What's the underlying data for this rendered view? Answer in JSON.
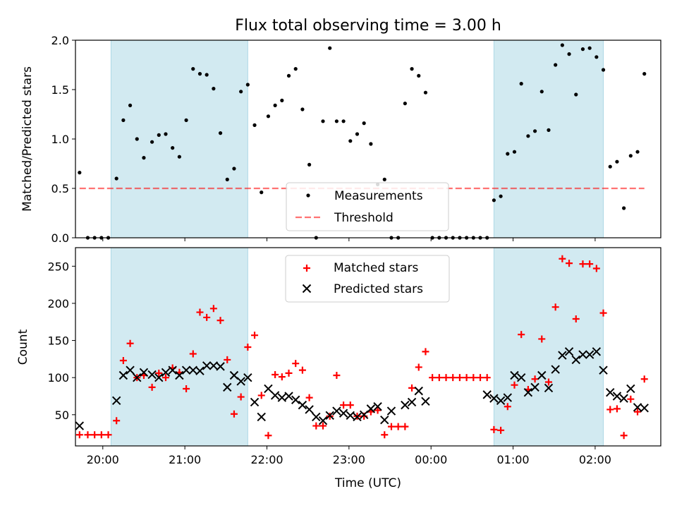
{
  "title": "Flux total observing time = 3.00 h",
  "xlabel": "Time (UTC)",
  "colors": {
    "shade": "#add8e6",
    "measurements": "#000000",
    "threshold": "#ff0000",
    "matched": "#ff0000",
    "predicted": "#000000"
  },
  "chart_data": [
    {
      "type": "scatter",
      "ylabel": "Matched/Predicted stars",
      "ylim": [
        0,
        2.0
      ],
      "yticks": [
        "0.0",
        "0.5",
        "1.0",
        "1.5",
        "2.0"
      ],
      "x_range": [
        "19:40",
        "02:48"
      ],
      "shaded_intervals": [
        [
          "20:06",
          "21:46"
        ],
        [
          "00:46",
          "02:06"
        ]
      ],
      "threshold": 0.5,
      "legend": {
        "placement": "lower-center",
        "entries": [
          "Measurements",
          "Threshold"
        ]
      },
      "series": [
        {
          "name": "Measurements",
          "marker": "dot",
          "points": [
            [
              "19:43",
              0.66
            ],
            [
              "19:49",
              0
            ],
            [
              "19:54",
              0
            ],
            [
              "19:59",
              0
            ],
            [
              "20:04",
              0
            ],
            [
              "20:10",
              0.6
            ],
            [
              "20:15",
              1.19
            ],
            [
              "20:20",
              1.34
            ],
            [
              "20:25",
              1.0
            ],
            [
              "20:30",
              0.81
            ],
            [
              "20:36",
              0.97
            ],
            [
              "20:41",
              1.04
            ],
            [
              "20:46",
              1.05
            ],
            [
              "20:51",
              0.91
            ],
            [
              "20:56",
              0.82
            ],
            [
              "21:01",
              1.19
            ],
            [
              "21:06",
              1.71
            ],
            [
              "21:11",
              1.66
            ],
            [
              "21:16",
              1.65
            ],
            [
              "21:21",
              1.51
            ],
            [
              "21:26",
              1.06
            ],
            [
              "21:31",
              0.59
            ],
            [
              "21:36",
              0.7
            ],
            [
              "21:41",
              1.48
            ],
            [
              "21:46",
              1.55
            ],
            [
              "21:51",
              1.14
            ],
            [
              "21:56",
              0.46
            ],
            [
              "22:01",
              1.23
            ],
            [
              "22:06",
              1.34
            ],
            [
              "22:11",
              1.39
            ],
            [
              "22:16",
              1.64
            ],
            [
              "22:21",
              1.71
            ],
            [
              "22:26",
              1.3
            ],
            [
              "22:31",
              0.74
            ],
            [
              "22:36",
              0
            ],
            [
              "22:41",
              1.18
            ],
            [
              "22:46",
              1.92
            ],
            [
              "22:51",
              1.18
            ],
            [
              "22:56",
              1.18
            ],
            [
              "23:01",
              0.98
            ],
            [
              "23:06",
              1.05
            ],
            [
              "23:11",
              1.16
            ],
            [
              "23:16",
              0.95
            ],
            [
              "23:21",
              0.54
            ],
            [
              "23:26",
              0.59
            ],
            [
              "23:31",
              0
            ],
            [
              "23:36",
              0
            ],
            [
              "23:41",
              1.36
            ],
            [
              "23:46",
              1.71
            ],
            [
              "23:51",
              1.64
            ],
            [
              "23:56",
              1.47
            ],
            [
              "00:01",
              0
            ],
            [
              "00:06",
              0
            ],
            [
              "00:11",
              0
            ],
            [
              "00:16",
              0
            ],
            [
              "00:21",
              0
            ],
            [
              "00:26",
              0
            ],
            [
              "00:31",
              0
            ],
            [
              "00:36",
              0
            ],
            [
              "00:41",
              0
            ],
            [
              "00:46",
              0.38
            ],
            [
              "00:51",
              0.42
            ],
            [
              "00:56",
              0.85
            ],
            [
              "01:01",
              0.87
            ],
            [
              "01:06",
              1.56
            ],
            [
              "01:11",
              1.03
            ],
            [
              "01:16",
              1.08
            ],
            [
              "01:21",
              1.48
            ],
            [
              "01:26",
              1.09
            ],
            [
              "01:31",
              1.75
            ],
            [
              "01:36",
              1.95
            ],
            [
              "01:41",
              1.86
            ],
            [
              "01:46",
              1.45
            ],
            [
              "01:51",
              1.91
            ],
            [
              "01:56",
              1.92
            ],
            [
              "02:01",
              1.83
            ],
            [
              "02:06",
              1.7
            ],
            [
              "02:11",
              0.72
            ],
            [
              "02:16",
              0.77
            ],
            [
              "02:21",
              0.3
            ],
            [
              "02:26",
              0.83
            ],
            [
              "02:31",
              0.87
            ],
            [
              "02:36",
              1.66
            ]
          ]
        }
      ]
    },
    {
      "type": "scatter",
      "ylabel": "Count",
      "ylim": [
        8,
        275
      ],
      "yticks": [
        "50",
        "100",
        "150",
        "200",
        "250"
      ],
      "xticks": [
        "20:00",
        "21:00",
        "22:00",
        "23:00",
        "00:00",
        "01:00",
        "02:00"
      ],
      "x_range": [
        "19:40",
        "02:48"
      ],
      "shaded_intervals": [
        [
          "20:06",
          "21:46"
        ],
        [
          "00:46",
          "02:06"
        ]
      ],
      "legend": {
        "placement": "top-center",
        "entries": [
          "Matched stars",
          "Predicted stars"
        ]
      },
      "series": [
        {
          "name": "Matched stars",
          "marker": "plus",
          "points": [
            [
              "19:43",
              23
            ],
            [
              "19:49",
              23
            ],
            [
              "19:54",
              23
            ],
            [
              "19:59",
              23
            ],
            [
              "20:04",
              23
            ],
            [
              "20:10",
              42
            ],
            [
              "20:15",
              123
            ],
            [
              "20:20",
              146
            ],
            [
              "20:25",
              100
            ],
            [
              "20:30",
              103
            ],
            [
              "20:36",
              87
            ],
            [
              "20:41",
              106
            ],
            [
              "20:46",
              100
            ],
            [
              "20:51",
              113
            ],
            [
              "20:56",
              107
            ],
            [
              "21:01",
              85
            ],
            [
              "21:06",
              132
            ],
            [
              "21:11",
              188
            ],
            [
              "21:16",
              181
            ],
            [
              "21:21",
              193
            ],
            [
              "21:26",
              177
            ],
            [
              "21:31",
              124
            ],
            [
              "21:36",
              51
            ],
            [
              "21:41",
              74
            ],
            [
              "21:46",
              141
            ],
            [
              "21:51",
              157
            ],
            [
              "21:56",
              76
            ],
            [
              "22:01",
              22
            ],
            [
              "22:06",
              104
            ],
            [
              "22:11",
              101
            ],
            [
              "22:16",
              106
            ],
            [
              "22:21",
              119
            ],
            [
              "22:26",
              110
            ],
            [
              "22:31",
              73
            ],
            [
              "22:36",
              35
            ],
            [
              "22:41",
              35
            ],
            [
              "22:46",
              48
            ],
            [
              "22:51",
              103
            ],
            [
              "22:56",
              63
            ],
            [
              "23:01",
              63
            ],
            [
              "23:06",
              48
            ],
            [
              "23:11",
              48
            ],
            [
              "23:16",
              54
            ],
            [
              "23:21",
              56
            ],
            [
              "23:26",
              23
            ],
            [
              "23:31",
              34
            ],
            [
              "23:36",
              34
            ],
            [
              "23:41",
              34
            ],
            [
              "23:46",
              86
            ],
            [
              "23:51",
              114
            ],
            [
              "23:56",
              135
            ],
            [
              "00:01",
              100
            ],
            [
              "00:06",
              100
            ],
            [
              "00:11",
              100
            ],
            [
              "00:16",
              100
            ],
            [
              "00:21",
              100
            ],
            [
              "00:26",
              100
            ],
            [
              "00:31",
              100
            ],
            [
              "00:36",
              100
            ],
            [
              "00:41",
              100
            ],
            [
              "00:46",
              30
            ],
            [
              "00:51",
              29
            ],
            [
              "00:56",
              61
            ],
            [
              "01:01",
              90
            ],
            [
              "01:06",
              158
            ],
            [
              "01:11",
              84
            ],
            [
              "01:16",
              98
            ],
            [
              "01:21",
              152
            ],
            [
              "01:26",
              94
            ],
            [
              "01:31",
              195
            ],
            [
              "01:36",
              260
            ],
            [
              "01:41",
              254
            ],
            [
              "01:46",
              179
            ],
            [
              "01:51",
              253
            ],
            [
              "01:56",
              253
            ],
            [
              "02:01",
              247
            ],
            [
              "02:06",
              187
            ],
            [
              "02:11",
              57
            ],
            [
              "02:16",
              58
            ],
            [
              "02:21",
              22
            ],
            [
              "02:26",
              71
            ],
            [
              "02:31",
              54
            ],
            [
              "02:36",
              98
            ]
          ]
        },
        {
          "name": "Predicted stars",
          "marker": "x",
          "points": [
            [
              "19:43",
              35
            ],
            [
              "20:10",
              69
            ],
            [
              "20:15",
              103
            ],
            [
              "20:20",
              110
            ],
            [
              "20:25",
              100
            ],
            [
              "20:30",
              107
            ],
            [
              "20:36",
              104
            ],
            [
              "20:41",
              100
            ],
            [
              "20:46",
              107
            ],
            [
              "20:51",
              110
            ],
            [
              "20:56",
              103
            ],
            [
              "21:01",
              110
            ],
            [
              "21:06",
              110
            ],
            [
              "21:11",
              109
            ],
            [
              "21:16",
              116
            ],
            [
              "21:21",
              116
            ],
            [
              "21:26",
              115
            ],
            [
              "21:31",
              87
            ],
            [
              "21:36",
              103
            ],
            [
              "21:41",
              95
            ],
            [
              "21:46",
              100
            ],
            [
              "21:51",
              67
            ],
            [
              "21:56",
              47
            ],
            [
              "22:01",
              85
            ],
            [
              "22:06",
              76
            ],
            [
              "22:11",
              73
            ],
            [
              "22:16",
              75
            ],
            [
              "22:21",
              70
            ],
            [
              "22:26",
              63
            ],
            [
              "22:31",
              57
            ],
            [
              "22:36",
              47
            ],
            [
              "22:41",
              42
            ],
            [
              "22:46",
              49
            ],
            [
              "22:51",
              55
            ],
            [
              "22:56",
              52
            ],
            [
              "23:01",
              49
            ],
            [
              "23:06",
              47
            ],
            [
              "23:11",
              50
            ],
            [
              "23:16",
              58
            ],
            [
              "23:21",
              61
            ],
            [
              "23:26",
              43
            ],
            [
              "23:31",
              55
            ],
            [
              "23:41",
              63
            ],
            [
              "23:46",
              67
            ],
            [
              "23:51",
              82
            ],
            [
              "23:56",
              68
            ],
            [
              "00:41",
              77
            ],
            [
              "00:46",
              72
            ],
            [
              "00:51",
              69
            ],
            [
              "00:56",
              73
            ],
            [
              "01:01",
              103
            ],
            [
              "01:06",
              100
            ],
            [
              "01:11",
              80
            ],
            [
              "01:16",
              87
            ],
            [
              "01:21",
              103
            ],
            [
              "01:26",
              86
            ],
            [
              "01:31",
              111
            ],
            [
              "01:36",
              130
            ],
            [
              "01:41",
              135
            ],
            [
              "01:46",
              124
            ],
            [
              "01:51",
              131
            ],
            [
              "01:56",
              131
            ],
            [
              "02:01",
              135
            ],
            [
              "02:06",
              110
            ],
            [
              "02:11",
              80
            ],
            [
              "02:16",
              75
            ],
            [
              "02:21",
              72
            ],
            [
              "02:26",
              85
            ],
            [
              "02:31",
              60
            ],
            [
              "02:36",
              59
            ]
          ]
        }
      ]
    }
  ]
}
